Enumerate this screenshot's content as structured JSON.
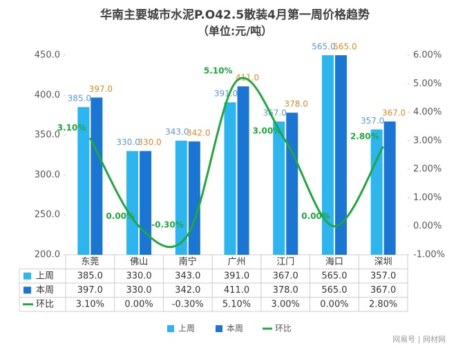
{
  "chart_data": {
    "type": "bar-line",
    "title": "华南主要城市水泥P.O42.5散装4月第一周价格趋势",
    "subtitle": "（单位:元/吨）",
    "categories": [
      "东莞",
      "佛山",
      "南宁",
      "广州",
      "江门",
      "海口",
      "深圳"
    ],
    "series": [
      {
        "name": "上周",
        "color": "#2cb5ee",
        "label_color": "#5b9bd5",
        "values": [
          385,
          330,
          343,
          391,
          367,
          565,
          357
        ],
        "value_labels": [
          "385.0",
          "330.0",
          "343.0",
          "391.0",
          "367.0",
          "565.0",
          "357.0"
        ]
      },
      {
        "name": "本周",
        "color": "#1a76d2",
        "label_color": "#e08a2a",
        "values": [
          397,
          330,
          342,
          411,
          378,
          565,
          367
        ],
        "value_labels": [
          "397.0",
          "330.0",
          "342.0",
          "411.0",
          "378.0",
          "565.0",
          "367.0"
        ]
      },
      {
        "name": "环比",
        "color": "#1fa83c",
        "label_color": "#1fa83c",
        "axis": "y2",
        "values": [
          3.1,
          0,
          -0.3,
          5.1,
          3,
          0,
          2.8
        ],
        "value_labels": [
          "3.10%",
          "0.00%",
          "-0.30%",
          "5.10%",
          "3.00%",
          "0.00%",
          "2.80%"
        ]
      }
    ],
    "ylim": [
      200,
      450
    ],
    "yticks": [
      {
        "value": 200,
        "label": "200.0"
      },
      {
        "value": 250,
        "label": "250.0"
      },
      {
        "value": 300,
        "label": "300.0"
      },
      {
        "value": 350,
        "label": "350.0"
      },
      {
        "value": 400,
        "label": "400.0"
      },
      {
        "value": 450,
        "label": "450.0"
      }
    ],
    "y2lim": [
      -1,
      6
    ],
    "y2ticks": [
      {
        "value": -1,
        "label": "-1.00%"
      },
      {
        "value": 0,
        "label": "0.00%"
      },
      {
        "value": 1,
        "label": "1.00%"
      },
      {
        "value": 2,
        "label": "2.00%"
      },
      {
        "value": 3,
        "label": "3.00%"
      },
      {
        "value": 4,
        "label": "4.00%"
      },
      {
        "value": 5,
        "label": "5.00%"
      },
      {
        "value": 6,
        "label": "6.00%"
      }
    ],
    "footer": "网易号 | 网材网"
  }
}
